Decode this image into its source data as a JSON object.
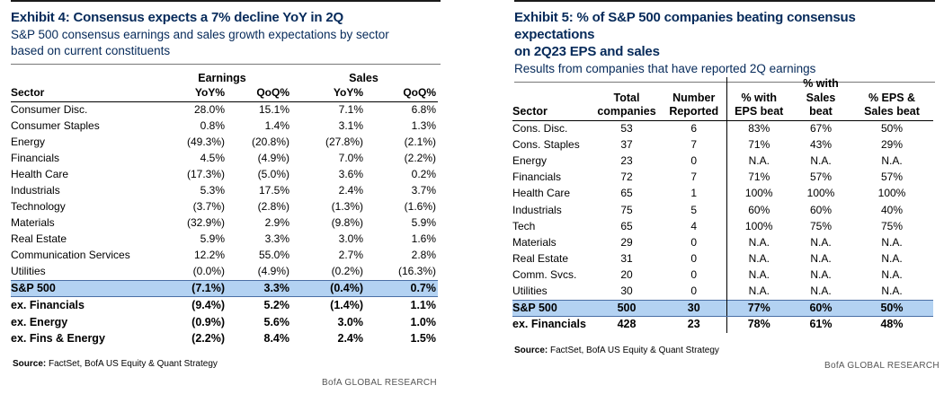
{
  "exhibit4": {
    "title": "Exhibit 4: Consensus expects a 7% decline YoY in 2Q",
    "subtitle_line1": "S&P 500 consensus earnings and sales growth expectations by sector",
    "subtitle_line2": "based on current constituents",
    "group_earnings": "Earnings",
    "group_sales": "Sales",
    "headers": [
      "Sector",
      "YoY%",
      "QoQ%",
      "YoY%",
      "QoQ%"
    ],
    "rows": [
      [
        "Consumer Disc.",
        "28.0%",
        "15.1%",
        "7.1%",
        "6.8%"
      ],
      [
        "Consumer Staples",
        "0.8%",
        "1.4%",
        "3.1%",
        "1.3%"
      ],
      [
        "Energy",
        "(49.3%)",
        "(20.8%)",
        "(27.8%)",
        "(2.1%)"
      ],
      [
        "Financials",
        "4.5%",
        "(4.9%)",
        "7.0%",
        "(2.2%)"
      ],
      [
        "Health Care",
        "(17.3%)",
        "(5.0%)",
        "3.6%",
        "0.2%"
      ],
      [
        "Industrials",
        "5.3%",
        "17.5%",
        "2.4%",
        "3.7%"
      ],
      [
        "Technology",
        "(3.7%)",
        "(2.8%)",
        "(1.3%)",
        "(1.6%)"
      ],
      [
        "Materials",
        "(32.9%)",
        "2.9%",
        "(9.8%)",
        "5.9%"
      ],
      [
        "Real Estate",
        "5.9%",
        "3.3%",
        "3.0%",
        "1.6%"
      ],
      [
        "Communication Services",
        "12.2%",
        "55.0%",
        "2.7%",
        "2.8%"
      ],
      [
        "Utilities",
        "(0.0%)",
        "(4.9%)",
        "(0.2%)",
        "(16.3%)"
      ]
    ],
    "summary": [
      [
        "S&P 500",
        "(7.1%)",
        "3.3%",
        "(0.4%)",
        "0.7%"
      ],
      [
        "ex. Financials",
        "(9.4%)",
        "5.2%",
        "(1.4%)",
        "1.1%"
      ],
      [
        "ex. Energy",
        "(0.9%)",
        "5.6%",
        "3.0%",
        "1.0%"
      ],
      [
        "ex. Fins & Energy",
        "(2.2%)",
        "8.4%",
        "2.4%",
        "1.5%"
      ]
    ],
    "source_label": "Source:",
    "source_text": "FactSet, BofA US Equity & Quant Strategy",
    "credit": "BofA GLOBAL RESEARCH"
  },
  "exhibit5": {
    "title_line1": "Exhibit 5: % of S&P 500 companies beating consensus expectations",
    "title_line2": "on 2Q23 EPS and sales",
    "subtitle": "Results from companies that have reported 2Q earnings",
    "headers": [
      [
        "Sector"
      ],
      [
        "Total",
        "companies"
      ],
      [
        "Number",
        "Reported"
      ],
      [
        "% with",
        "EPS beat"
      ],
      [
        "% with",
        "Sales",
        "beat"
      ],
      [
        "% EPS &",
        "Sales beat"
      ]
    ],
    "rows": [
      [
        "Cons. Disc.",
        "53",
        "6",
        "83%",
        "67%",
        "50%"
      ],
      [
        "Cons. Staples",
        "37",
        "7",
        "71%",
        "43%",
        "29%"
      ],
      [
        "Energy",
        "23",
        "0",
        "N.A.",
        "N.A.",
        "N.A."
      ],
      [
        "Financials",
        "72",
        "7",
        "71%",
        "57%",
        "57%"
      ],
      [
        "Health Care",
        "65",
        "1",
        "100%",
        "100%",
        "100%"
      ],
      [
        "Industrials",
        "75",
        "5",
        "60%",
        "60%",
        "40%"
      ],
      [
        "Tech",
        "65",
        "4",
        "100%",
        "75%",
        "75%"
      ],
      [
        "Materials",
        "29",
        "0",
        "N.A.",
        "N.A.",
        "N.A."
      ],
      [
        "Real Estate",
        "31",
        "0",
        "N.A.",
        "N.A.",
        "N.A."
      ],
      [
        "Comm. Svcs.",
        "20",
        "0",
        "N.A.",
        "N.A.",
        "N.A."
      ],
      [
        "Utilities",
        "30",
        "0",
        "N.A.",
        "N.A.",
        "N.A."
      ]
    ],
    "summary": [
      [
        "S&P 500",
        "500",
        "30",
        "77%",
        "60%",
        "50%"
      ],
      [
        "ex. Financials",
        "428",
        "23",
        "78%",
        "61%",
        "48%"
      ]
    ],
    "source_label": "Source:",
    "source_text": "FactSet, BofA US Equity & Quant Strategy",
    "credit": "BofA GLOBAL RESEARCH"
  },
  "colors": {
    "title": "#062a5a",
    "highlight_row": "#b3d2f2"
  }
}
